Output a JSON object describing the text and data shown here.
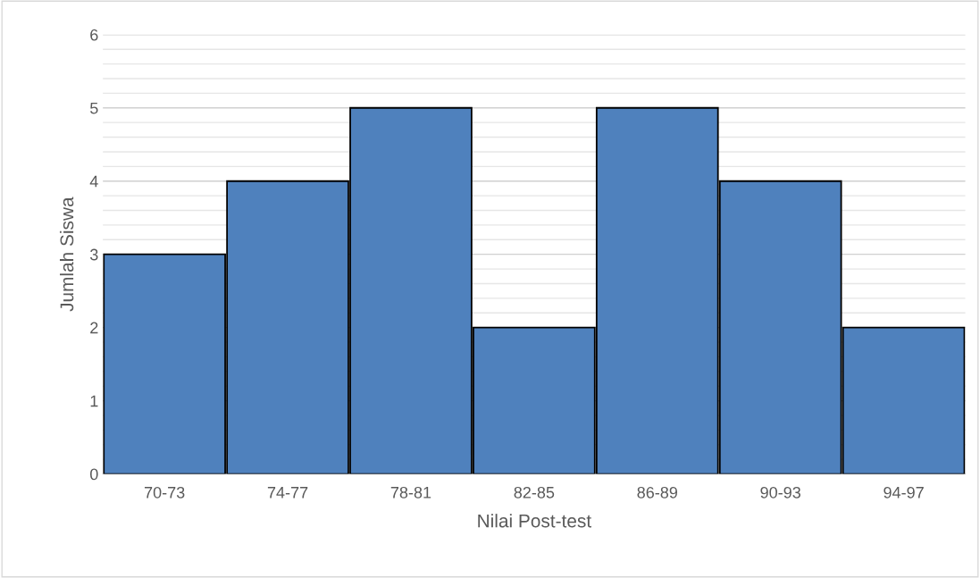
{
  "chart_data": {
    "type": "bar",
    "xlabel": "Nilai Post-test",
    "ylabel": "Jumlah Siswa",
    "categories": [
      "70-73",
      "74-77",
      "78-81",
      "82-85",
      "86-89",
      "90-93",
      "94-97"
    ],
    "values": [
      3,
      4,
      5,
      2,
      5,
      4,
      2
    ],
    "color": "#4f81bd",
    "ylim": [
      0,
      6
    ],
    "yticks": [
      0,
      {
        "value": 0.2,
        "label": null
      },
      {
        "value": 0.4,
        "label": null
      },
      {
        "value": 0.6,
        "label": null
      },
      {
        "value": 0.8,
        "label": null
      },
      1,
      {
        "value": 1.2,
        "label": null
      },
      {
        "value": 1.4,
        "label": null
      },
      {
        "value": 1.6,
        "label": null
      },
      {
        "value": 1.8,
        "label": null
      },
      2,
      {
        "value": 2.2,
        "label": null
      },
      {
        "value": 2.4,
        "label": null
      },
      {
        "value": 2.6,
        "label": null
      },
      {
        "value": 2.8,
        "label": null
      },
      3,
      {
        "value": 3.2,
        "label": null
      },
      {
        "value": 3.4,
        "label": null
      },
      {
        "value": 3.6,
        "label": null
      },
      {
        "value": 3.8,
        "label": null
      },
      4,
      {
        "value": 4.2,
        "label": null
      },
      {
        "value": 4.4,
        "label": null
      },
      {
        "value": 4.6,
        "label": null
      },
      {
        "value": 4.8,
        "label": null
      },
      5,
      {
        "value": 5.2,
        "label": null
      },
      {
        "value": 5.4,
        "label": null
      },
      {
        "value": 5.6,
        "label": null
      },
      {
        "value": 5.8,
        "label": null
      },
      6
    ],
    "grid": "y"
  }
}
